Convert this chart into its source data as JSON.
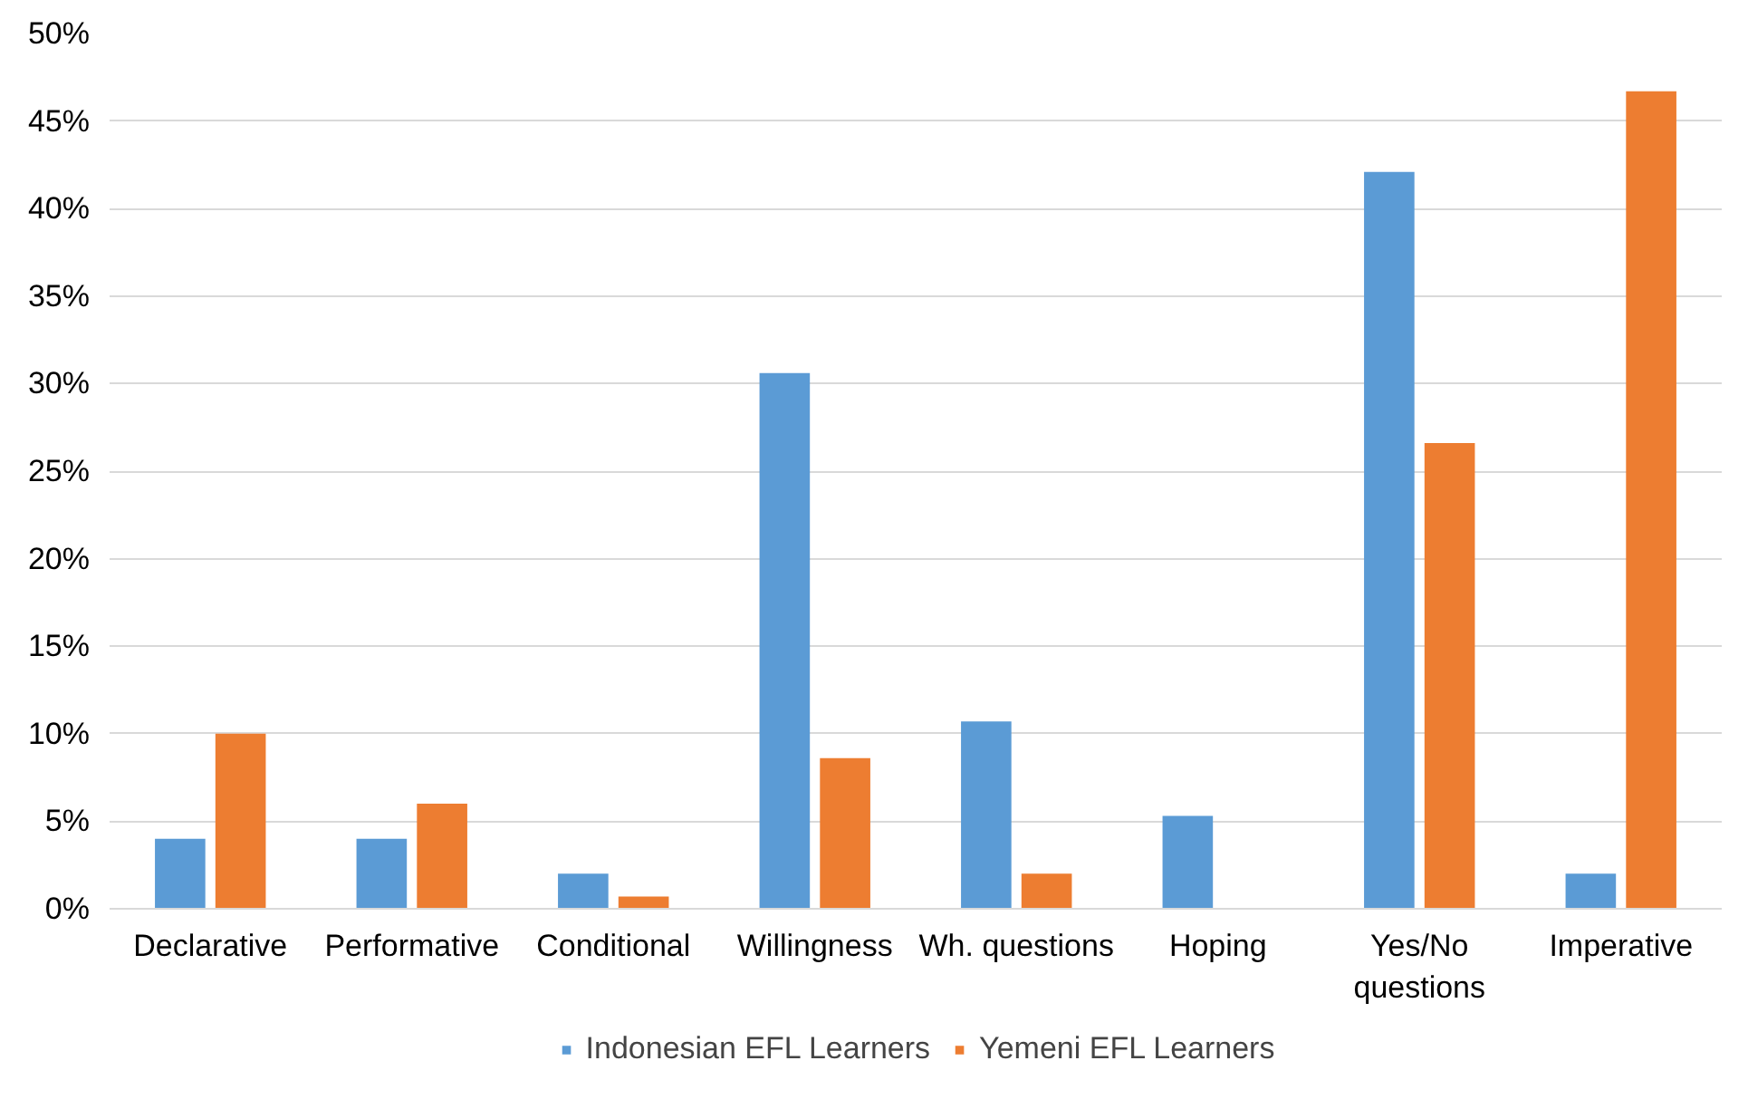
{
  "chart_data": {
    "type": "bar",
    "categories": [
      "Declarative",
      "Performative",
      "Conditional",
      "Willingness",
      "Wh. questions",
      "Hoping",
      "Yes/No questions",
      "Imperative"
    ],
    "series": [
      {
        "name": "Indonesian EFL Learners",
        "color": "#5b9bd5",
        "values": [
          4.0,
          4.0,
          2.0,
          30.6,
          10.7,
          5.3,
          42.1,
          2.0
        ]
      },
      {
        "name": "Yemeni EFL Learners",
        "color": "#ed7d31",
        "values": [
          10.0,
          6.0,
          0.7,
          8.6,
          2.0,
          0,
          26.6,
          46.7
        ]
      }
    ],
    "ylim": [
      0,
      50
    ],
    "yticks": [
      {
        "value": 0,
        "label": "0%"
      },
      {
        "value": 5,
        "label": "5%"
      },
      {
        "value": 10,
        "label": "10%"
      },
      {
        "value": 15,
        "label": "15%"
      },
      {
        "value": 20,
        "label": "20%"
      },
      {
        "value": 25,
        "label": "25%"
      },
      {
        "value": 30,
        "label": "30%"
      },
      {
        "value": 35,
        "label": "35%"
      },
      {
        "value": 40,
        "label": "40%"
      },
      {
        "value": 45,
        "label": "45%"
      },
      {
        "value": 50,
        "label": "50%"
      }
    ],
    "grid": "y",
    "legend": "bottom"
  }
}
